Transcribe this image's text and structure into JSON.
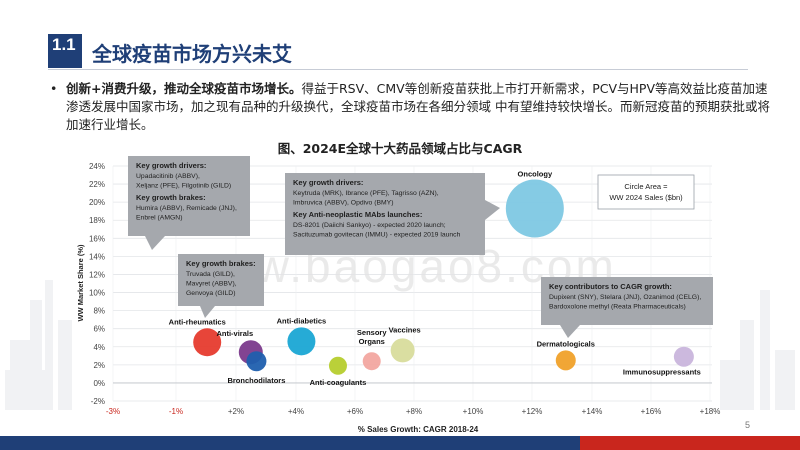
{
  "section": {
    "number": "1.1",
    "title": "全球疫苗市场方兴未艾"
  },
  "bullet": {
    "bold": "创新+消费升级，推动全球疫苗市场增长。",
    "text": "得益于RSV、CMV等创新疫苗获批上市打开新需求，PCV与HPV等高效益比疫苗加速渗透发展中国家市场，加之现有品种的升级换代，全球疫苗市场在各细分领域 中有望维持较快增长。而新冠疫苗的预期获批或将加速行业增长。"
  },
  "figure_title": "图、2024E全球十大药品领域占比与CAGR",
  "page_number": "5",
  "watermark": "www.baogao8.com",
  "chart_data": {
    "type": "scatter",
    "xlabel": "% Sales Growth: CAGR 2018-24",
    "ylabel": "WW Market Share (%)",
    "xlim": [
      -3,
      18
    ],
    "ylim": [
      -2,
      24
    ],
    "x_ticks": [
      -3,
      -1,
      2,
      4,
      6,
      8,
      10,
      12,
      14,
      16,
      18
    ],
    "x_tick_labels": [
      "-3%",
      "-1%",
      "+2%",
      "+4%",
      "+6%",
      "+8%",
      "+10%",
      "+12%",
      "+14%",
      "+16%",
      "+18%"
    ],
    "y_ticks": [
      -2,
      0,
      2,
      4,
      6,
      8,
      10,
      12,
      14,
      16,
      18,
      20,
      22,
      24
    ],
    "y_tick_labels": [
      "-2%",
      "0%",
      "2%",
      "4%",
      "6%",
      "8%",
      "10%",
      "12%",
      "14%",
      "16%",
      "18%",
      "20%",
      "22%",
      "24%"
    ],
    "grid": true,
    "size_legend": "Circle Area =\nWW 2024 Sales ($bn)",
    "points": [
      {
        "name": "Oncology",
        "x": 12.0,
        "y": 19.3,
        "r": 29,
        "color": "#7ec8e3"
      },
      {
        "name": "Anti-rheumatics",
        "x": 0.35,
        "y": 4.5,
        "r": 14,
        "color": "#e63b2e"
      },
      {
        "name": "Anti-virals",
        "x": 1.9,
        "y": 3.4,
        "r": 12,
        "color": "#7b3a8c"
      },
      {
        "name": "Bronchodilators",
        "x": 2.1,
        "y": 2.4,
        "r": 10,
        "color": "#1f5fae"
      },
      {
        "name": "Anti-diabetics",
        "x": 3.7,
        "y": 4.6,
        "r": 14,
        "color": "#1aa7d4"
      },
      {
        "name": "Anti-coagulants",
        "x": 5.0,
        "y": 1.9,
        "r": 9,
        "color": "#b6cd2e"
      },
      {
        "name": "Sensory Organs",
        "x": 6.2,
        "y": 2.4,
        "r": 9,
        "color": "#f2a7a0"
      },
      {
        "name": "Vaccines",
        "x": 7.3,
        "y": 3.6,
        "r": 12,
        "color": "#d8dc9c"
      },
      {
        "name": "Dermatologicals",
        "x": 13.1,
        "y": 2.5,
        "r": 10,
        "color": "#f0a12a"
      },
      {
        "name": "Immunosuppressants",
        "x": 17.3,
        "y": 2.9,
        "r": 10,
        "color": "#c9b5dc"
      }
    ],
    "callouts": [
      {
        "id": "callout-growth-drivers-1",
        "groups": [
          {
            "heading": "Key growth drivers:",
            "lines": [
              "Upadacitinib (ABBV),",
              "Xeljanz (PFE), Filgotinib (GILD)"
            ]
          },
          {
            "heading": "Key growth brakes:",
            "lines": [
              "Humira (ABBV), Remicade (JNJ),",
              "Enbrel (AMGN)"
            ]
          }
        ]
      },
      {
        "id": "callout-oncology",
        "groups": [
          {
            "heading": "Key growth drivers:",
            "lines": [
              "Keytruda (MRK), Ibrance (PFE), Tagrisso (AZN),",
              "Imbruvica (ABBV), Opdivo (BMY)"
            ]
          },
          {
            "heading": "Key Anti-neoplastic MAbs launches:",
            "lines": [
              "DS-8201 (Daiichi Sankyo) - expected 2020 launch;",
              "Sacituzumab govitecan (IMMU) - expected 2019 launch"
            ]
          }
        ]
      },
      {
        "id": "callout-growth-brakes",
        "groups": [
          {
            "heading": "Key growth brakes:",
            "lines": [
              "Truvada (GILD),",
              "Mavyret (ABBV),",
              "Genvoya (GILD)"
            ]
          }
        ]
      },
      {
        "id": "callout-cagr-contributors",
        "groups": [
          {
            "heading": "Key contributors to CAGR growth:",
            "lines": [
              "Dupixent (SNY), Stelara (JNJ), Ozanimod (CELG),",
              "Bardoxolone methyl (Reata Pharmaceuticals)"
            ]
          }
        ]
      }
    ]
  }
}
